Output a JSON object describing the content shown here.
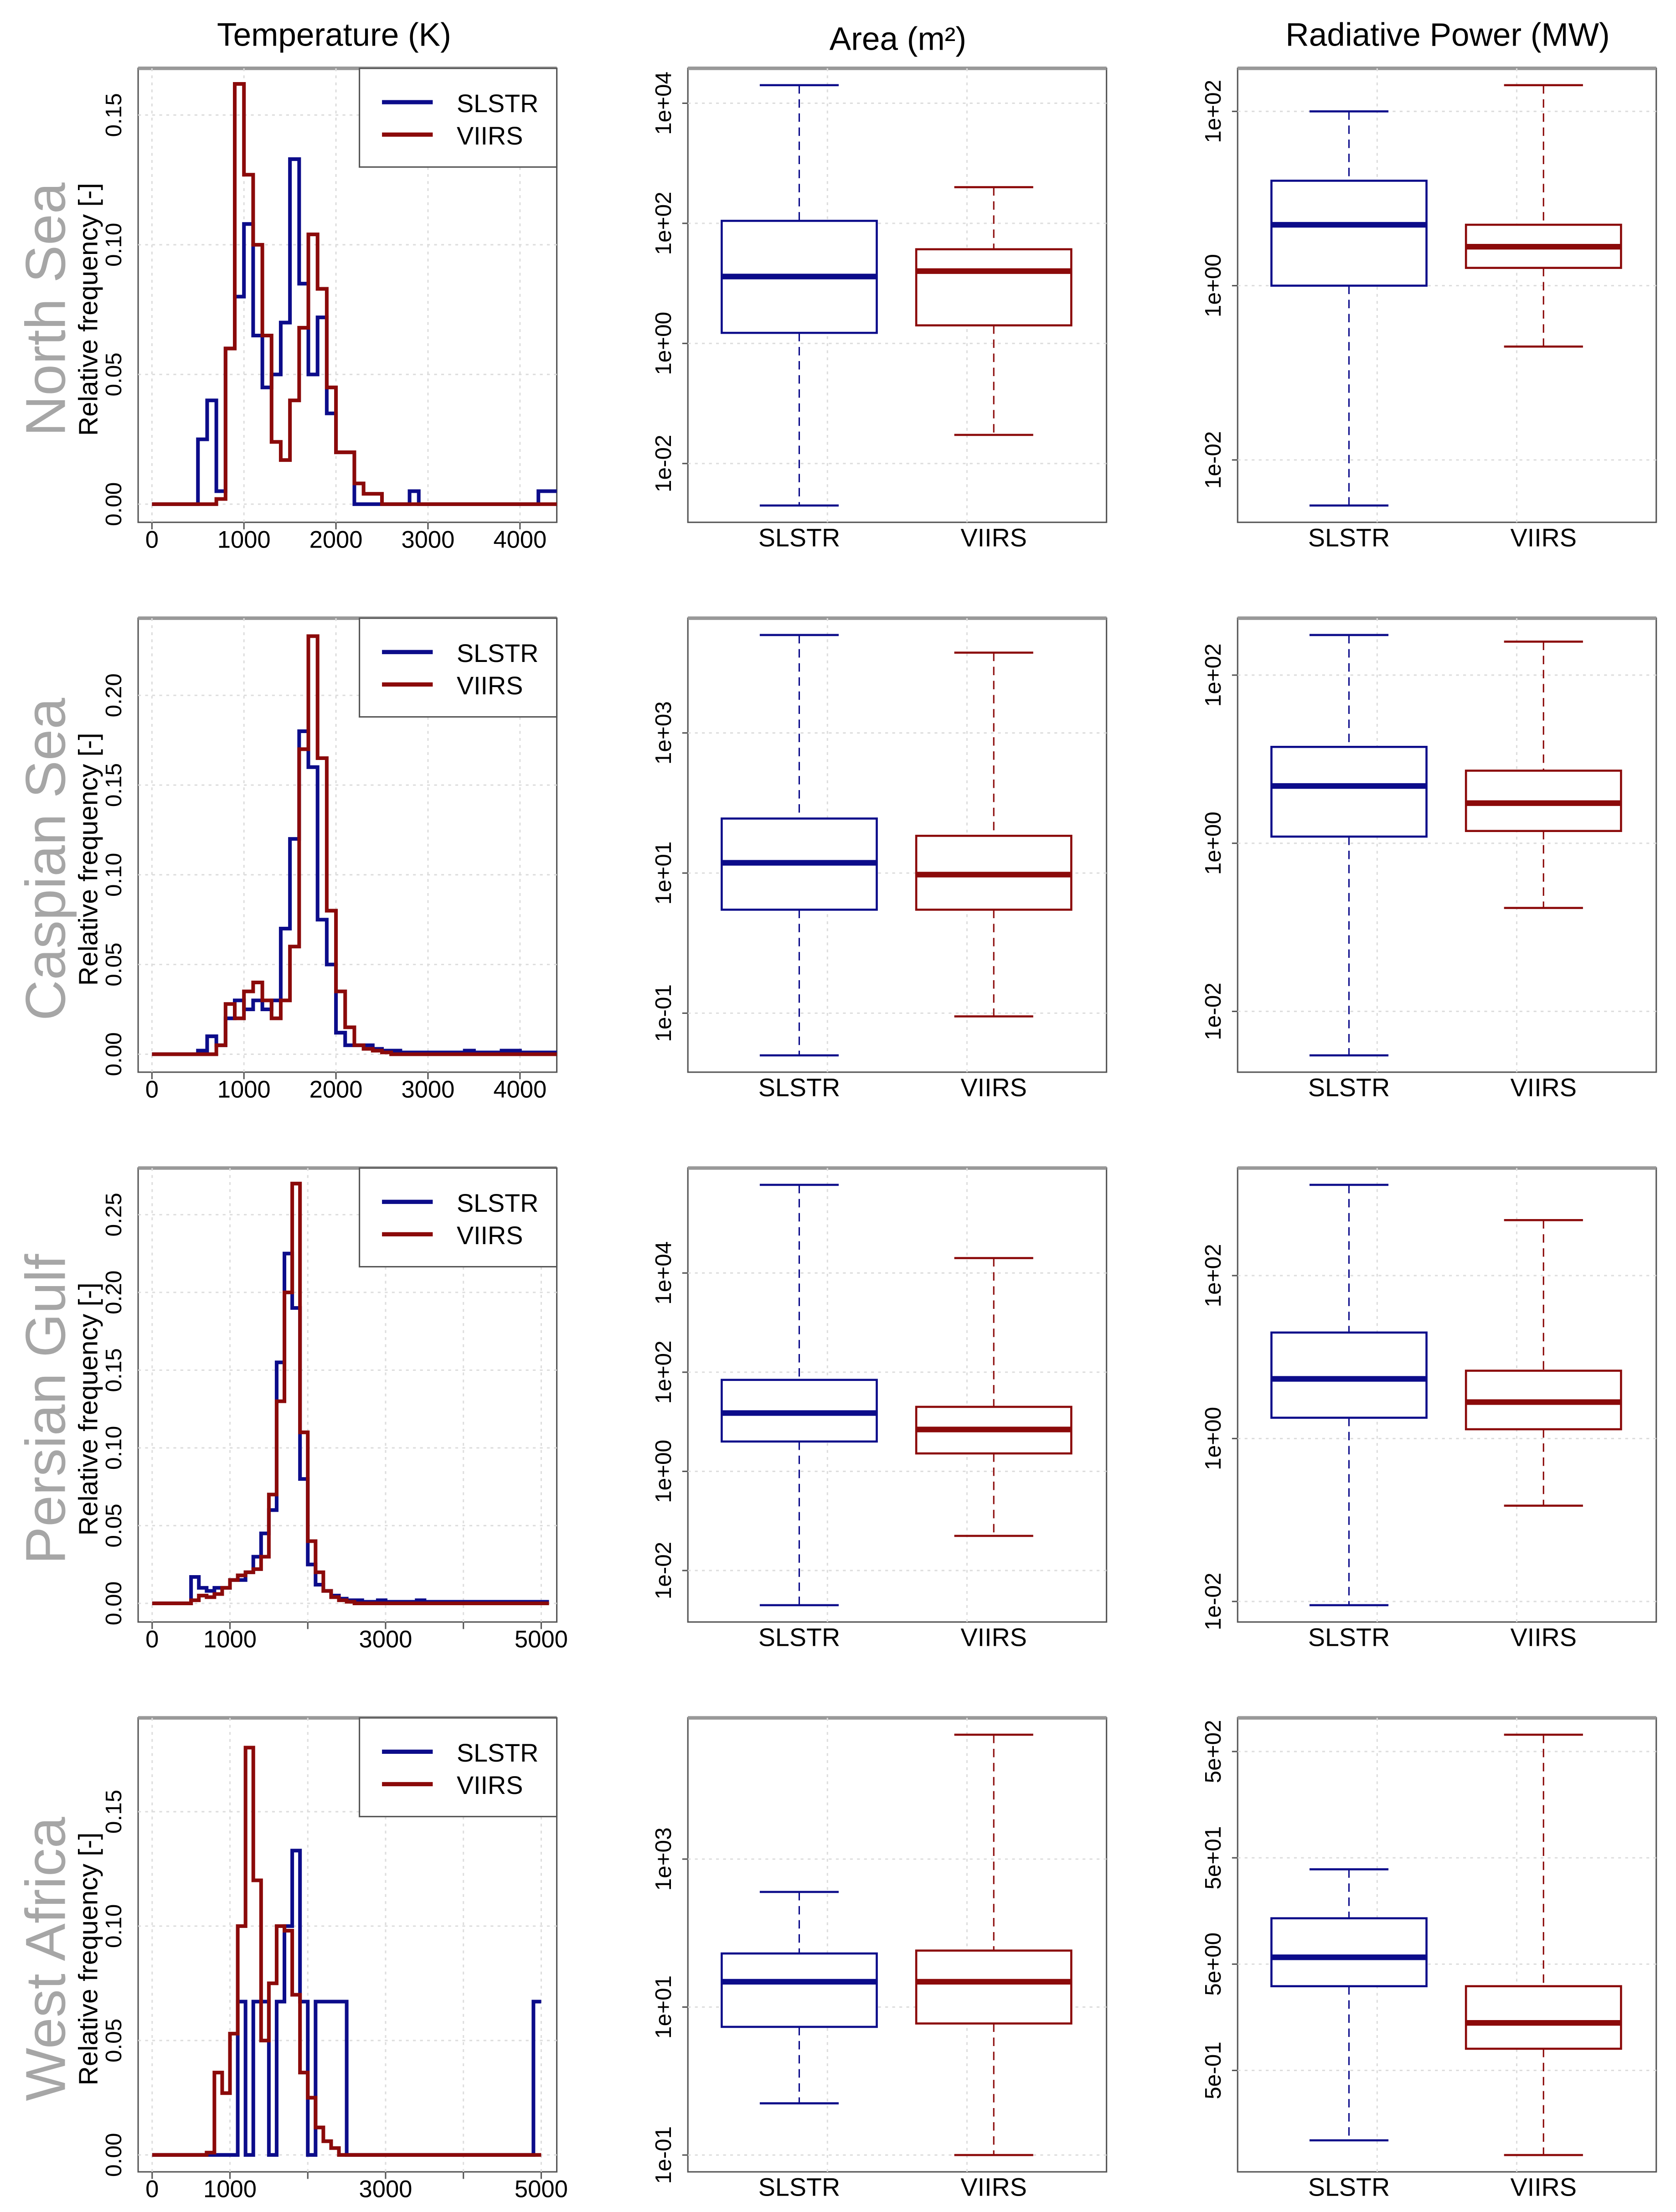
{
  "chart_data": {
    "type": "multi-panel",
    "column_titles": [
      "Temperature (K)",
      "Area (m²)",
      "Radiative Power (MW)"
    ],
    "colors": {
      "SLSTR": "#0c0c8a",
      "VIIRS": "#8b0a0a"
    },
    "categories": [
      "SLSTR",
      "VIIRS"
    ],
    "hist_ylabel": "Relative frequency [-]",
    "rows": [
      {
        "region": "North Sea",
        "histogram": {
          "type": "line",
          "bin_width": 100,
          "xlim": [
            -150,
            4400
          ],
          "ylim": [
            -0.007,
            0.168
          ],
          "xticks": [
            0,
            1000,
            2000,
            3000,
            4000
          ],
          "xtick_labels": [
            "0",
            "1000",
            "2000",
            "3000",
            "4000"
          ],
          "yticks": [
            0,
            0.05,
            0.1,
            0.15
          ],
          "ytick_labels": [
            "0.00",
            "0.05",
            "0.10",
            "0.15"
          ],
          "legend": [
            "SLSTR",
            "VIIRS"
          ],
          "legend_position": "top-right",
          "series": [
            {
              "name": "SLSTR",
              "values": [
                0,
                0,
                0,
                0,
                0,
                0.025,
                0.04,
                0.005,
                0.06,
                0.08,
                0.108,
                0.065,
                0.045,
                0.05,
                0.07,
                0.133,
                0.085,
                0.05,
                0.072,
                0.035,
                0.02,
                0.02,
                0,
                0,
                0,
                0,
                0,
                0,
                0.005,
                0,
                0,
                0,
                0,
                0,
                0,
                0,
                0,
                0,
                0,
                0,
                0,
                0,
                0.005,
                0.005
              ]
            },
            {
              "name": "VIIRS",
              "values": [
                0,
                0,
                0,
                0,
                0,
                0,
                0,
                0.002,
                0.06,
                0.162,
                0.127,
                0.1,
                0.065,
                0.024,
                0.017,
                0.04,
                0.068,
                0.104,
                0.083,
                0.045,
                0.02,
                0.02,
                0.008,
                0.004,
                0.004,
                0,
                0,
                0,
                0,
                0,
                0,
                0,
                0,
                0,
                0,
                0,
                0,
                0,
                0,
                0,
                0,
                0,
                0,
                0
              ]
            }
          ]
        },
        "area": {
          "type": "box",
          "ticks": [
            0.01,
            1,
            100,
            10000
          ],
          "tick_labels": [
            "1e-02",
            "1e+00",
            "1e+02",
            "1e+04"
          ],
          "boxes": [
            {
              "name": "SLSTR",
              "min": 0.002,
              "q1": 1.5,
              "median": 13,
              "q3": 110,
              "max": 20000
            },
            {
              "name": "VIIRS",
              "min": 0.03,
              "q1": 2,
              "median": 16,
              "q3": 37,
              "max": 400
            }
          ]
        },
        "power": {
          "type": "box",
          "ticks": [
            0.01,
            1,
            100
          ],
          "tick_labels": [
            "1e-02",
            "1e+00",
            "1e+02"
          ],
          "boxes": [
            {
              "name": "SLSTR",
              "min": 0.003,
              "q1": 1,
              "median": 5,
              "q3": 16,
              "max": 100
            },
            {
              "name": "VIIRS",
              "min": 0.2,
              "q1": 1.6,
              "median": 2.8,
              "q3": 5,
              "max": 200
            }
          ]
        }
      },
      {
        "region": "Caspian Sea",
        "histogram": {
          "type": "line",
          "bin_width": 100,
          "xlim": [
            -150,
            4400
          ],
          "ylim": [
            -0.01,
            0.243
          ],
          "xticks": [
            0,
            1000,
            2000,
            3000,
            4000
          ],
          "xtick_labels": [
            "0",
            "1000",
            "2000",
            "3000",
            "4000"
          ],
          "yticks": [
            0,
            0.05,
            0.1,
            0.15,
            0.2
          ],
          "ytick_labels": [
            "0.00",
            "0.05",
            "0.10",
            "0.15",
            "0.20"
          ],
          "legend": [
            "SLSTR",
            "VIIRS"
          ],
          "legend_position": "top-right",
          "series": [
            {
              "name": "SLSTR",
              "values": [
                0,
                0,
                0,
                0,
                0,
                0.002,
                0.01,
                0.005,
                0.02,
                0.03,
                0.025,
                0.03,
                0.025,
                0.03,
                0.07,
                0.12,
                0.18,
                0.16,
                0.075,
                0.05,
                0.012,
                0.005,
                0.005,
                0.005,
                0.003,
                0.002,
                0.002,
                0.001,
                0.001,
                0.001,
                0.001,
                0.001,
                0.001,
                0.001,
                0.002,
                0.001,
                0.001,
                0.001,
                0.002,
                0.002,
                0.001,
                0.001,
                0.001,
                0.001
              ]
            },
            {
              "name": "VIIRS",
              "values": [
                0,
                0,
                0,
                0,
                0,
                0,
                0,
                0.005,
                0.028,
                0.02,
                0.035,
                0.04,
                0.03,
                0.02,
                0.03,
                0.06,
                0.17,
                0.233,
                0.165,
                0.08,
                0.035,
                0.015,
                0.005,
                0.003,
                0.002,
                0.001,
                0,
                0,
                0,
                0,
                0,
                0,
                0,
                0,
                0,
                0,
                0,
                0,
                0,
                0,
                0,
                0,
                0,
                0
              ]
            }
          ]
        },
        "area": {
          "type": "box",
          "ticks": [
            0.1,
            10,
            1000
          ],
          "tick_labels": [
            "1e-01",
            "1e+01",
            "1e+03"
          ],
          "boxes": [
            {
              "name": "SLSTR",
              "min": 0.025,
              "q1": 3,
              "median": 14,
              "q3": 60,
              "max": 25000
            },
            {
              "name": "VIIRS",
              "min": 0.09,
              "q1": 3,
              "median": 9.5,
              "q3": 34,
              "max": 14000
            }
          ]
        },
        "power": {
          "type": "box",
          "ticks": [
            0.01,
            1,
            100
          ],
          "tick_labels": [
            "1e-02",
            "1e+00",
            "1e+02"
          ],
          "boxes": [
            {
              "name": "SLSTR",
              "min": 0.003,
              "q1": 1.2,
              "median": 4.8,
              "q3": 14,
              "max": 300
            },
            {
              "name": "VIIRS",
              "min": 0.17,
              "q1": 1.4,
              "median": 3,
              "q3": 7.3,
              "max": 250
            }
          ]
        }
      },
      {
        "region": "Persian Gulf",
        "histogram": {
          "type": "line",
          "bin_width": 100,
          "xlim": [
            -180,
            5200
          ],
          "ylim": [
            -0.012,
            0.28
          ],
          "xticks": [
            0,
            1000,
            2000,
            3000,
            4000,
            5000
          ],
          "xtick_labels": [
            "0",
            "1000",
            "",
            "3000",
            "",
            "5000"
          ],
          "yticks": [
            0,
            0.05,
            0.1,
            0.15,
            0.2,
            0.25
          ],
          "ytick_labels": [
            "0.00",
            "0.05",
            "0.10",
            "0.15",
            "0.20",
            "0.25"
          ],
          "legend": [
            "SLSTR",
            "VIIRS"
          ],
          "legend_position": "top-right",
          "series": [
            {
              "name": "SLSTR",
              "values": [
                0,
                0,
                0,
                0,
                0,
                0.017,
                0.01,
                0.008,
                0.01,
                0.01,
                0.015,
                0.015,
                0.02,
                0.03,
                0.045,
                0.06,
                0.155,
                0.225,
                0.19,
                0.08,
                0.025,
                0.012,
                0.008,
                0.005,
                0.003,
                0.002,
                0.002,
                0.001,
                0.001,
                0.002,
                0.001,
                0.001,
                0.001,
                0.001,
                0.002,
                0.001,
                0.001,
                0.001,
                0.001,
                0.001,
                0.001,
                0.001,
                0.001,
                0.001,
                0.001,
                0.001,
                0.001,
                0.001,
                0.001,
                0.001,
                0.001
              ]
            },
            {
              "name": "VIIRS",
              "values": [
                0,
                0,
                0,
                0,
                0,
                0.002,
                0.005,
                0.004,
                0.006,
                0.01,
                0.015,
                0.018,
                0.02,
                0.022,
                0.03,
                0.07,
                0.13,
                0.2,
                0.27,
                0.11,
                0.04,
                0.02,
                0.008,
                0.004,
                0.002,
                0.001,
                0,
                0,
                0,
                0,
                0,
                0,
                0,
                0,
                0,
                0,
                0,
                0,
                0,
                0,
                0,
                0,
                0,
                0,
                0,
                0,
                0,
                0,
                0,
                0,
                0
              ]
            }
          ]
        },
        "area": {
          "type": "box",
          "ticks": [
            0.01,
            1,
            100,
            10000
          ],
          "tick_labels": [
            "1e-02",
            "1e+00",
            "1e+02",
            "1e+04"
          ],
          "boxes": [
            {
              "name": "SLSTR",
              "min": 0.002,
              "q1": 4,
              "median": 15,
              "q3": 70,
              "max": 600000
            },
            {
              "name": "VIIRS",
              "min": 0.05,
              "q1": 2.3,
              "median": 7,
              "q3": 20,
              "max": 20000
            }
          ]
        },
        "power": {
          "type": "box",
          "ticks": [
            0.01,
            1,
            100
          ],
          "tick_labels": [
            "1e-02",
            "1e+00",
            "1e+02"
          ],
          "boxes": [
            {
              "name": "SLSTR",
              "min": 0.009,
              "q1": 1.8,
              "median": 5.4,
              "q3": 20,
              "max": 1300
            },
            {
              "name": "VIIRS",
              "min": 0.15,
              "q1": 1.3,
              "median": 2.8,
              "q3": 6.8,
              "max": 480
            }
          ]
        }
      },
      {
        "region": "West Africa",
        "histogram": {
          "type": "line",
          "bin_width": 100,
          "xlim": [
            -180,
            5200
          ],
          "ylim": [
            -0.0074,
            0.191
          ],
          "xticks": [
            0,
            1000,
            2000,
            3000,
            4000,
            5000
          ],
          "xtick_labels": [
            "0",
            "1000",
            "",
            "3000",
            "",
            "5000"
          ],
          "yticks": [
            0,
            0.05,
            0.1,
            0.15
          ],
          "ytick_labels": [
            "0.00",
            "0.05",
            "0.10",
            "0.15"
          ],
          "legend": [
            "SLSTR",
            "VIIRS"
          ],
          "legend_position": "top-right",
          "series": [
            {
              "name": "SLSTR",
              "values": [
                0,
                0,
                0,
                0,
                0,
                0,
                0,
                0,
                0,
                0,
                0,
                0.067,
                0,
                0.067,
                0.067,
                0,
                0.067,
                0.1,
                0.133,
                0.067,
                0,
                0.067,
                0.067,
                0.067,
                0.067,
                0,
                0,
                0,
                0,
                0,
                0,
                0,
                0,
                0,
                0,
                0,
                0,
                0,
                0,
                0,
                0,
                0,
                0,
                0,
                0,
                0,
                0,
                0,
                0,
                0.067
              ]
            },
            {
              "name": "VIIRS",
              "values": [
                0,
                0,
                0,
                0,
                0,
                0,
                0,
                0.001,
                0.036,
                0.027,
                0.053,
                0.1,
                0.178,
                0.12,
                0.05,
                0.075,
                0.1,
                0.098,
                0.07,
                0.036,
                0.025,
                0.012,
                0.006,
                0.003,
                0,
                0,
                0,
                0,
                0,
                0,
                0,
                0,
                0,
                0,
                0,
                0,
                0,
                0,
                0,
                0,
                0,
                0,
                0,
                0,
                0,
                0,
                0,
                0,
                0,
                0
              ]
            }
          ]
        },
        "area": {
          "type": "box",
          "ticks": [
            0.1,
            10,
            1000
          ],
          "tick_labels": [
            "1e-01",
            "1e+01",
            "1e+03"
          ],
          "boxes": [
            {
              "name": "SLSTR",
              "min": 0.5,
              "q1": 5.4,
              "median": 22,
              "q3": 53,
              "max": 360
            },
            {
              "name": "VIIRS",
              "min": 0.1,
              "q1": 6,
              "median": 22,
              "q3": 58,
              "max": 48000
            }
          ]
        },
        "power": {
          "type": "box",
          "ticks": [
            0.5,
            5,
            50,
            500
          ],
          "tick_labels": [
            "5e-01",
            "5e+00",
            "5e+01",
            "5e+02"
          ],
          "boxes": [
            {
              "name": "SLSTR",
              "min": 0.11,
              "q1": 3.1,
              "median": 5.8,
              "q3": 13.5,
              "max": 39
            },
            {
              "name": "VIIRS",
              "min": 0.08,
              "q1": 0.8,
              "median": 1.4,
              "q3": 3.1,
              "max": 720
            }
          ]
        }
      }
    ]
  }
}
